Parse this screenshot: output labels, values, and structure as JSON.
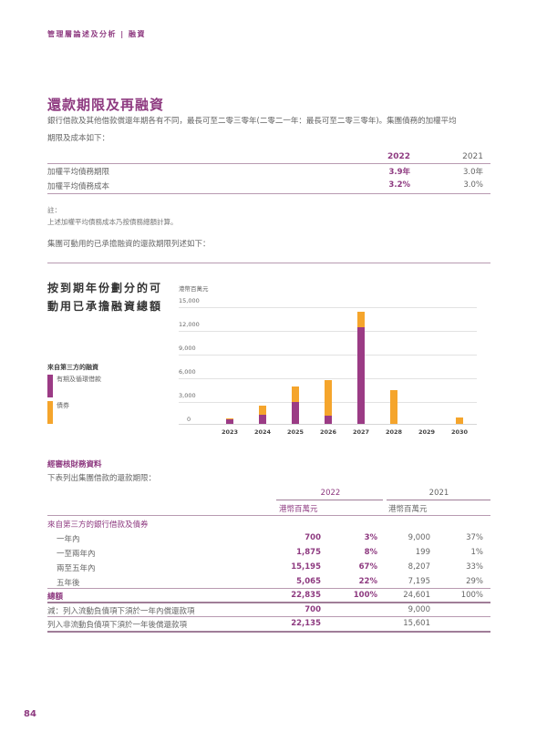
{
  "header": {
    "breadcrumb": "管理層論述及分析 | 融資"
  },
  "section": {
    "title": "還款期限及再融資",
    "intro_line1": "銀行借款及其他借款償還年期各有不同，最長可至二零三零年(二零二一年：最長可至二零三零年)。集團債務的加權平均",
    "intro_line2": "期限及成本如下："
  },
  "summary_table": {
    "columns": [
      "2022",
      "2021"
    ],
    "rows": [
      {
        "label": "加權平均債務期限",
        "values": [
          "3.9年",
          "3.0年"
        ]
      },
      {
        "label": "加權平均債務成本",
        "values": [
          "3.2%",
          "3.0%"
        ]
      }
    ]
  },
  "notes": {
    "label": "註：",
    "text": "上述加權平均債務成本乃按債務總額計算。",
    "lead": "集團可動用的已承擔融資的還款期限列述如下："
  },
  "chart_data": {
    "type": "bar",
    "stacked": true,
    "title": "按到期年份劃分的可動用已承擔融資總額",
    "ylabel": "港幣百萬元",
    "xlabel": "",
    "ylim": [
      0,
      15000
    ],
    "yticks": [
      "15,000",
      "12,000",
      "9,000",
      "6,000",
      "3,000",
      "0"
    ],
    "categories": [
      "2023",
      "2024",
      "2025",
      "2026",
      "2027",
      "2028",
      "2029",
      "2030"
    ],
    "legend_title": "來自第三方的融資",
    "series": [
      {
        "name": "有期及循環借款",
        "color": "#9b3b85",
        "values": [
          550,
          1200,
          2800,
          1000,
          12400,
          0,
          0,
          0
        ]
      },
      {
        "name": "債券",
        "color": "#f5a52c",
        "values": [
          150,
          1200,
          2000,
          4600,
          2000,
          4300,
          0,
          800
        ]
      }
    ],
    "grid": true,
    "legend_position": "left"
  },
  "audited": {
    "subhead": "經審核財務資料",
    "lead": "下表列出集團借款的還款期限：",
    "years": [
      "2022",
      "2021"
    ],
    "units": [
      "港幣百萬元",
      "港幣百萬元"
    ],
    "group_label": "來自第三方的銀行借款及債券",
    "rows": [
      {
        "label": "一年內",
        "v2022": "700",
        "p2022": "3%",
        "v2021": "9,000",
        "p2021": "37%"
      },
      {
        "label": "一至兩年內",
        "v2022": "1,875",
        "p2022": "8%",
        "v2021": "199",
        "p2021": "1%"
      },
      {
        "label": "兩至五年內",
        "v2022": "15,195",
        "p2022": "67%",
        "v2021": "8,207",
        "p2021": "33%"
      },
      {
        "label": "五年後",
        "v2022": "5,065",
        "p2022": "22%",
        "v2021": "7,195",
        "p2021": "29%"
      }
    ],
    "total": {
      "label": "總額",
      "v2022": "22,835",
      "p2022": "100%",
      "v2021": "24,601",
      "p2021": "100%"
    },
    "less": {
      "label": "減：列入流動負債項下須於一年內償還款項",
      "v2022": "700",
      "v2021": "9,000"
    },
    "noncurrent": {
      "label": "列入非流動負債項下須於一年後償還款項",
      "v2022": "22,135",
      "v2021": "15,601"
    }
  },
  "footer": {
    "page_number": "84"
  }
}
